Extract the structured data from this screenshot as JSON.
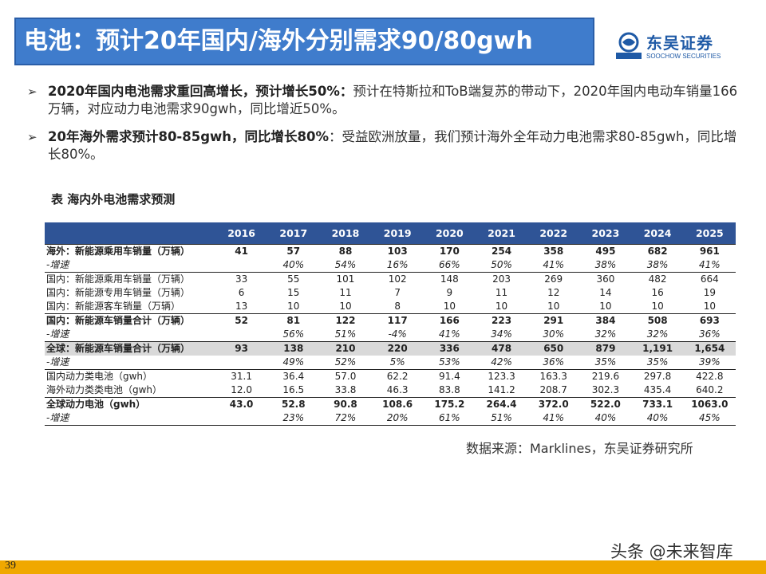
{
  "title": "电池：预计20年国内/海外分别需求90/80gwh",
  "logo": {
    "cn": "东吴证券",
    "en": "SOOCHOW SECURITIES",
    "mark": "SCS"
  },
  "bullets": [
    {
      "bold": "2020年国内电池需求重回高增长，预计增长50%：",
      "text": "预计在特斯拉和ToB端复苏的带动下，2020年国内电动车销量166万辆，对应动力电池需求90gwh，同比增近50%。"
    },
    {
      "bold": "20年海外需求预计80-85gwh，同比增长80%",
      "text": "：受益欧洲放量，我们预计海外全年动力电池需求80-85gwh，同比增长80%。"
    }
  ],
  "table_caption": "表 海内外电池需求预测",
  "table": {
    "years": [
      "2016",
      "2017",
      "2018",
      "2019",
      "2020",
      "2021",
      "2022",
      "2023",
      "2024",
      "2025"
    ],
    "rows": [
      {
        "label": "海外：新能源乘用车销量（万辆）",
        "values": [
          "41",
          "57",
          "88",
          "103",
          "170",
          "254",
          "358",
          "495",
          "682",
          "961"
        ]
      },
      {
        "label": "-增速",
        "values": [
          "",
          "40%",
          "54%",
          "16%",
          "66%",
          "50%",
          "41%",
          "38%",
          "38%",
          "41%"
        ]
      },
      {
        "label": "国内：新能源乘用车销量（万辆）",
        "values": [
          "33",
          "55",
          "101",
          "102",
          "148",
          "203",
          "269",
          "360",
          "482",
          "664"
        ]
      },
      {
        "label": "国内：新能源专用车销量（万辆）",
        "values": [
          "6",
          "15",
          "11",
          "7",
          "9",
          "11",
          "12",
          "14",
          "16",
          "19"
        ]
      },
      {
        "label": "国内：新能源客车销量（万辆）",
        "values": [
          "13",
          "10",
          "10",
          "8",
          "10",
          "10",
          "10",
          "10",
          "10",
          "10"
        ]
      },
      {
        "label": "国内：新能源车销量合计（万辆）",
        "values": [
          "52",
          "81",
          "122",
          "117",
          "166",
          "223",
          "291",
          "384",
          "508",
          "693"
        ]
      },
      {
        "label": "-增速",
        "values": [
          "",
          "56%",
          "51%",
          "-4%",
          "41%",
          "34%",
          "30%",
          "32%",
          "32%",
          "36%"
        ]
      },
      {
        "label": "全球：新能源车销量合计（万辆）",
        "values": [
          "93",
          "138",
          "210",
          "220",
          "336",
          "478",
          "650",
          "879",
          "1,191",
          "1,654"
        ]
      },
      {
        "label": "-增速",
        "values": [
          "",
          "49%",
          "52%",
          "5%",
          "53%",
          "42%",
          "36%",
          "35%",
          "35%",
          "39%"
        ]
      },
      {
        "label": "国内动力类电池（gwh）",
        "values": [
          "31.1",
          "36.4",
          "57.0",
          "62.2",
          "91.4",
          "123.3",
          "163.3",
          "219.6",
          "297.8",
          "422.8"
        ]
      },
      {
        "label": "海外动力类类电池（gwh）",
        "values": [
          "12.0",
          "16.5",
          "33.8",
          "46.3",
          "83.8",
          "141.2",
          "208.7",
          "302.3",
          "435.4",
          "640.2"
        ]
      },
      {
        "label": "全球动力电池（gwh）",
        "values": [
          "43.0",
          "52.8",
          "90.8",
          "108.6",
          "175.2",
          "264.4",
          "372.0",
          "522.0",
          "733.1",
          "1063.0"
        ]
      },
      {
        "label": "-增速",
        "values": [
          "",
          "23%",
          "72%",
          "20%",
          "61%",
          "51%",
          "41%",
          "40%",
          "40%",
          "45%"
        ]
      }
    ]
  },
  "source": "数据来源：Marklines，东吴证券研究所",
  "page_number": "39",
  "watermark": "头条 @未来智库",
  "colors": {
    "title_bg": "#3f7ccc",
    "header_bg": "#2f5496",
    "footer": "#f0a800",
    "logo": "#1f5aa6"
  }
}
